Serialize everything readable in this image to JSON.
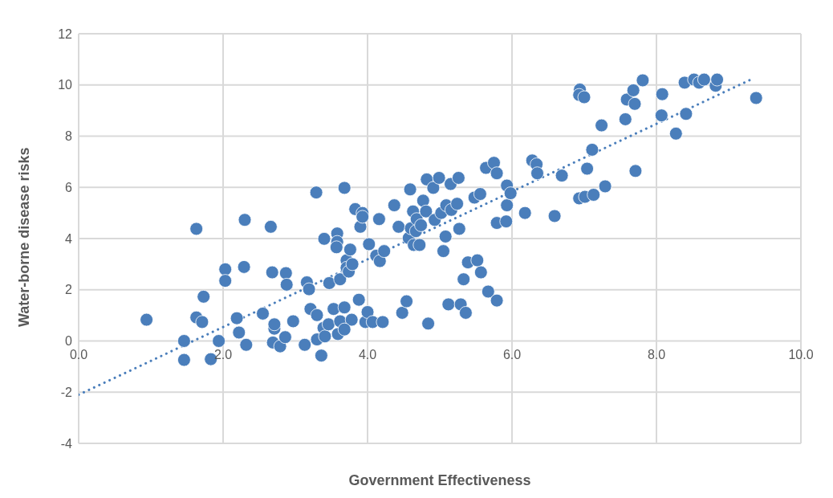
{
  "chart_data": {
    "type": "scatter",
    "xlabel": "Government Effectiveness",
    "ylabel": "Water-borne disease risks",
    "xlim": [
      0,
      10
    ],
    "ylim": [
      -4,
      12
    ],
    "xticks": [
      {
        "value": 0,
        "label": "0.0"
      },
      {
        "value": 2,
        "label": "2.0"
      },
      {
        "value": 4,
        "label": "4.0"
      },
      {
        "value": 6,
        "label": "6.0"
      },
      {
        "value": 8,
        "label": "8.0"
      },
      {
        "value": 10,
        "label": "10.0"
      }
    ],
    "yticks": [
      -4,
      -2,
      0,
      2,
      4,
      6,
      8,
      10,
      12
    ],
    "grid": true,
    "legend": false,
    "series": [
      {
        "marker": "circle",
        "color": "#4a7ebb",
        "x": [
          0.94,
          1.46,
          1.46,
          1.63,
          1.63,
          1.71,
          1.73,
          1.83,
          1.94,
          2.03,
          2.03,
          2.19,
          2.22,
          2.3,
          2.29,
          2.32,
          2.55,
          2.66,
          2.68,
          2.71,
          2.71,
          2.69,
          2.79,
          2.87,
          2.88,
          2.86,
          2.97,
          3.13,
          3.16,
          3.19,
          3.21,
          3.29,
          3.3,
          3.3,
          3.36,
          3.4,
          3.39,
          3.41,
          3.46,
          3.47,
          3.53,
          3.58,
          3.58,
          3.57,
          3.62,
          3.62,
          3.59,
          3.68,
          3.68,
          3.71,
          3.71,
          3.74,
          3.76,
          3.78,
          3.68,
          3.79,
          3.83,
          3.88,
          3.9,
          3.93,
          3.93,
          3.97,
          4.0,
          4.02,
          4.07,
          4.12,
          4.16,
          4.17,
          4.21,
          4.23,
          4.37,
          4.43,
          4.48,
          4.54,
          4.57,
          4.59,
          4.6,
          4.63,
          4.64,
          4.67,
          4.68,
          4.72,
          4.74,
          4.77,
          4.81,
          4.82,
          4.84,
          4.91,
          4.93,
          4.99,
          5.02,
          5.05,
          5.08,
          5.09,
          5.12,
          5.16,
          5.15,
          5.24,
          5.26,
          5.27,
          5.29,
          5.33,
          5.36,
          5.39,
          5.48,
          5.52,
          5.56,
          5.57,
          5.64,
          5.67,
          5.75,
          5.79,
          5.79,
          5.79,
          5.93,
          5.92,
          5.93,
          5.98,
          6.18,
          6.28,
          6.34,
          6.35,
          6.59,
          6.69,
          6.94,
          6.93,
          7.0,
          6.93,
          7.01,
          7.04,
          7.11,
          7.13,
          7.24,
          7.29,
          7.57,
          7.59,
          7.68,
          7.7,
          7.71,
          7.81,
          8.08,
          8.07,
          8.27,
          8.41,
          8.39,
          8.52,
          8.59,
          8.66,
          8.82,
          8.84,
          9.38
        ],
        "values": [
          0.83,
          0,
          -0.74,
          4.38,
          0.92,
          0.74,
          1.73,
          -0.71,
          0,
          2.8,
          2.35,
          0.89,
          0.33,
          4.73,
          2.89,
          -0.15,
          1.07,
          4.46,
          2.68,
          0.48,
          0.65,
          -0.06,
          -0.21,
          2.65,
          2.2,
          0.15,
          0.77,
          -0.15,
          2.29,
          2.02,
          1.25,
          5.8,
          0.06,
          1.01,
          -0.57,
          3.99,
          0.51,
          0.18,
          0.65,
          2.26,
          1.25,
          4.2,
          3.87,
          3.66,
          2.41,
          0.77,
          0.27,
          1.31,
          5.98,
          3.15,
          2.86,
          2.71,
          3.57,
          0.83,
          0.45,
          3.0,
          5.15,
          1.61,
          4.46,
          5.0,
          4.85,
          0.74,
          1.13,
          3.78,
          0.74,
          3.33,
          4.76,
          3.12,
          0.74,
          3.51,
          5.3,
          4.46,
          1.1,
          1.55,
          4.02,
          5.92,
          4.4,
          5.06,
          3.75,
          4.29,
          4.76,
          3.75,
          4.52,
          5.48,
          5.06,
          6.31,
          0.68,
          5.98,
          4.73,
          6.37,
          5.0,
          3.51,
          4.08,
          5.3,
          1.43,
          5.12,
          6.13,
          5.36,
          6.37,
          4.38,
          1.43,
          2.41,
          1.1,
          3.07,
          5.6,
          3.15,
          5.74,
          2.68,
          6.76,
          1.93,
          6.96,
          6.55,
          1.58,
          4.61,
          6.07,
          4.67,
          5.3,
          5.77,
          5.0,
          7.05,
          6.9,
          6.55,
          4.88,
          6.46,
          9.82,
          9.61,
          9.52,
          5.57,
          5.63,
          6.73,
          7.47,
          5.71,
          8.42,
          6.04,
          8.66,
          9.43,
          9.79,
          9.26,
          6.64,
          10.18,
          9.64,
          8.81,
          8.1,
          8.87,
          10.09,
          10.21,
          10.09,
          10.21,
          9.97,
          10.21,
          9.49
        ]
      },
      {
        "type": "line",
        "color": "#4a7ebb",
        "line_style": "dotted",
        "x": [
          0,
          9.3
        ],
        "values": [
          -2.1,
          10.2
        ]
      }
    ]
  }
}
